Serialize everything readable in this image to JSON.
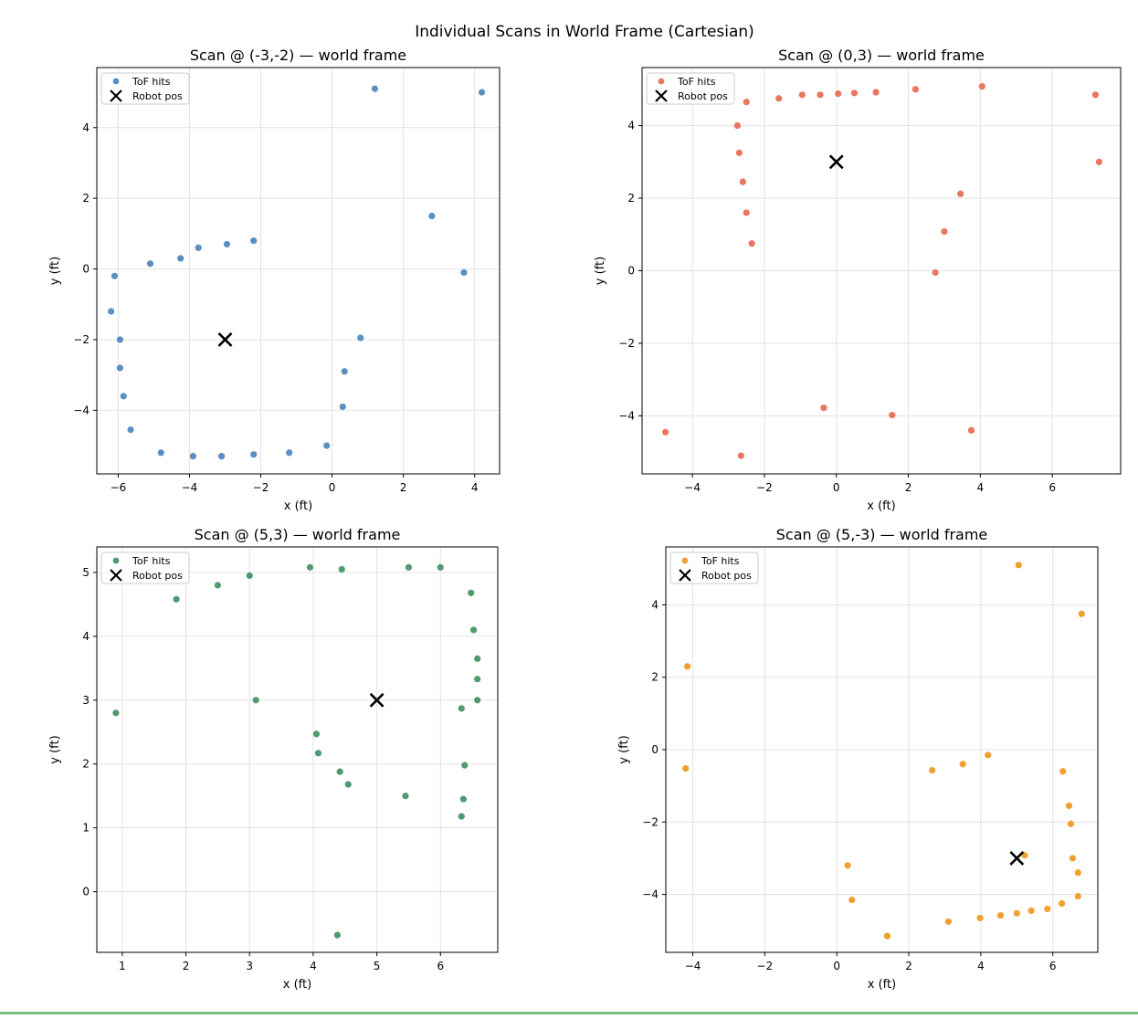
{
  "figure": {
    "title": "Individual Scans in World Frame (Cartesian)"
  },
  "legend": {
    "hits_label": "ToF hits",
    "robot_label": "Robot pos"
  },
  "chart_data": [
    {
      "type": "scatter",
      "title": "Scan @ (-3,-2) — world frame",
      "xlabel": "x (ft)",
      "ylabel": "y (ft)",
      "xlim": [
        -6.6,
        4.7
      ],
      "ylim": [
        -5.8,
        5.7
      ],
      "xticks": [
        -6,
        -4,
        -2,
        0,
        2,
        4
      ],
      "yticks": [
        -4,
        -2,
        0,
        2,
        4
      ],
      "color": "#5b8ec2",
      "robot": [
        -3,
        -2
      ],
      "points": [
        [
          1.2,
          5.1
        ],
        [
          4.2,
          5.0
        ],
        [
          2.8,
          1.5
        ],
        [
          3.7,
          -0.1
        ],
        [
          0.8,
          -1.95
        ],
        [
          0.35,
          -2.9
        ],
        [
          0.3,
          -3.9
        ],
        [
          -0.15,
          -5.0
        ],
        [
          -1.2,
          -5.2
        ],
        [
          -2.2,
          -5.25
        ],
        [
          -3.1,
          -5.3
        ],
        [
          -3.9,
          -5.3
        ],
        [
          -4.8,
          -5.2
        ],
        [
          -5.65,
          -4.55
        ],
        [
          -5.85,
          -3.6
        ],
        [
          -5.95,
          -2.8
        ],
        [
          -5.95,
          -2.0
        ],
        [
          -6.2,
          -1.2
        ],
        [
          -6.1,
          -0.2
        ],
        [
          -5.1,
          0.15
        ],
        [
          -4.25,
          0.3
        ],
        [
          -3.75,
          0.6
        ],
        [
          -2.95,
          0.7
        ],
        [
          -2.2,
          0.8
        ]
      ]
    },
    {
      "type": "scatter",
      "title": "Scan @ (0,3) — world frame",
      "xlabel": "x (ft)",
      "ylabel": "y (ft)",
      "xlim": [
        -5.4,
        7.9
      ],
      "ylim": [
        -5.6,
        5.6
      ],
      "xticks": [
        -4,
        -2,
        0,
        2,
        4,
        6
      ],
      "yticks": [
        -4,
        -2,
        0,
        2,
        4
      ],
      "color": "#ea7560",
      "robot": [
        0,
        3
      ],
      "points": [
        [
          -2.5,
          4.65
        ],
        [
          -1.6,
          4.75
        ],
        [
          -0.95,
          4.85
        ],
        [
          -0.45,
          4.85
        ],
        [
          0.05,
          4.88
        ],
        [
          0.5,
          4.9
        ],
        [
          1.1,
          4.92
        ],
        [
          2.2,
          5.0
        ],
        [
          4.05,
          5.08
        ],
        [
          7.2,
          4.85
        ],
        [
          7.3,
          3.0
        ],
        [
          3.45,
          2.12
        ],
        [
          3.0,
          1.08
        ],
        [
          2.75,
          -0.05
        ],
        [
          -2.75,
          4.0
        ],
        [
          -2.7,
          3.25
        ],
        [
          -2.6,
          2.45
        ],
        [
          -2.5,
          1.6
        ],
        [
          -2.35,
          0.75
        ],
        [
          -4.75,
          -4.45
        ],
        [
          -2.65,
          -5.1
        ],
        [
          -0.35,
          -3.78
        ],
        [
          1.55,
          -3.98
        ],
        [
          3.75,
          -4.4
        ]
      ]
    },
    {
      "type": "scatter",
      "title": "Scan @ (5,3) — world frame",
      "xlabel": "x (ft)",
      "ylabel": "y (ft)",
      "xlim": [
        0.6,
        6.9
      ],
      "ylim": [
        -0.95,
        5.4
      ],
      "xticks": [
        1,
        2,
        3,
        4,
        5,
        6
      ],
      "yticks": [
        0,
        1,
        2,
        3,
        4,
        5
      ],
      "color": "#4f9a6e",
      "robot": [
        5,
        3
      ],
      "points": [
        [
          0.9,
          2.8
        ],
        [
          1.85,
          4.58
        ],
        [
          2.5,
          4.8
        ],
        [
          3.0,
          4.95
        ],
        [
          3.95,
          5.08
        ],
        [
          4.45,
          5.05
        ],
        [
          5.5,
          5.08
        ],
        [
          6.0,
          5.08
        ],
        [
          6.48,
          4.68
        ],
        [
          6.52,
          4.1
        ],
        [
          6.58,
          3.65
        ],
        [
          6.58,
          3.33
        ],
        [
          6.58,
          3.0
        ],
        [
          6.33,
          2.87
        ],
        [
          6.38,
          1.98
        ],
        [
          6.36,
          1.45
        ],
        [
          6.33,
          1.18
        ],
        [
          3.1,
          3.0
        ],
        [
          4.05,
          2.47
        ],
        [
          4.08,
          2.17
        ],
        [
          4.42,
          1.88
        ],
        [
          4.55,
          1.68
        ],
        [
          5.45,
          1.5
        ],
        [
          4.38,
          -0.68
        ]
      ]
    },
    {
      "type": "scatter",
      "title": "Scan @ (5,-3) — world frame",
      "xlabel": "x (ft)",
      "ylabel": "y (ft)",
      "xlim": [
        -4.75,
        7.25
      ],
      "ylim": [
        -5.6,
        5.6
      ],
      "xticks": [
        -4,
        -2,
        0,
        2,
        4,
        6
      ],
      "yticks": [
        -4,
        -2,
        0,
        2,
        4
      ],
      "color": "#f0a030",
      "robot": [
        5,
        -3
      ],
      "points": [
        [
          -4.15,
          2.3
        ],
        [
          -4.2,
          -0.52
        ],
        [
          5.05,
          5.1
        ],
        [
          6.8,
          3.75
        ],
        [
          2.65,
          -0.57
        ],
        [
          3.5,
          -0.4
        ],
        [
          4.2,
          -0.15
        ],
        [
          6.28,
          -0.6
        ],
        [
          6.45,
          -1.55
        ],
        [
          6.5,
          -2.05
        ],
        [
          6.55,
          -3.0
        ],
        [
          6.7,
          -3.4
        ],
        [
          6.7,
          -4.05
        ],
        [
          6.25,
          -4.25
        ],
        [
          5.85,
          -4.4
        ],
        [
          5.4,
          -4.45
        ],
        [
          5.0,
          -4.52
        ],
        [
          4.55,
          -4.58
        ],
        [
          3.98,
          -4.65
        ],
        [
          3.1,
          -4.75
        ],
        [
          1.4,
          -5.15
        ],
        [
          0.42,
          -4.15
        ],
        [
          0.3,
          -3.2
        ],
        [
          5.22,
          -2.92
        ]
      ]
    }
  ]
}
